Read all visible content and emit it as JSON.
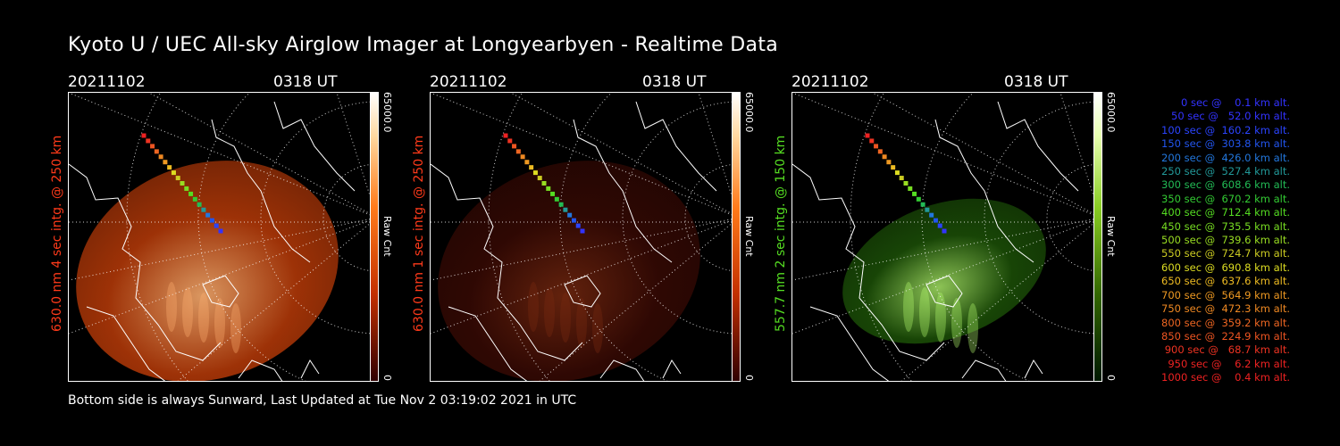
{
  "title": "Kyoto U / UEC All-sky Airglow Imager at Longyearbyen - Realtime Data",
  "footer": "Bottom side is always Sunward, Last Updated at Tue Nov  2 03:19:02 2021 in UTC",
  "panels": [
    {
      "date": "20211102",
      "time": "0318 UT",
      "ylabel": "630.0 nm  4 sec intg. @ 250 km",
      "cbar_max": "65000.0",
      "cbar_min": "0",
      "cbar_label": "Raw Cnt",
      "label_color": "#ff3a1a",
      "tint": "red"
    },
    {
      "date": "20211102",
      "time": "0318 UT",
      "ylabel": "630.0 nm  1 sec intg. @ 250 km",
      "cbar_max": "65000.0",
      "cbar_min": "0",
      "cbar_label": "Raw Cnt",
      "label_color": "#ff3a1a",
      "tint": "darkred"
    },
    {
      "date": "20211102",
      "time": "0318 UT",
      "ylabel": "557.7 nm  2 sec intg. @ 150 km",
      "cbar_max": "65000.0",
      "cbar_min": "0",
      "cbar_label": "Raw Cnt",
      "label_color": "#55dd22",
      "tint": "green"
    }
  ],
  "legend": [
    {
      "text": "0 sec @    0.1 km alt.",
      "color": "#3333ff"
    },
    {
      "text": "50 sec @   52.0 km alt.",
      "color": "#3333ff"
    },
    {
      "text": "100 sec @  160.2 km alt.",
      "color": "#2b44ff"
    },
    {
      "text": "150 sec @  303.8 km alt.",
      "color": "#2255ee"
    },
    {
      "text": "200 sec @  426.0 km alt.",
      "color": "#2277dd"
    },
    {
      "text": "250 sec @  527.4 km alt.",
      "color": "#229999"
    },
    {
      "text": "300 sec @  608.6 km alt.",
      "color": "#22bb55"
    },
    {
      "text": "350 sec @  670.2 km alt.",
      "color": "#33cc33"
    },
    {
      "text": "400 sec @  712.4 km alt.",
      "color": "#55dd22"
    },
    {
      "text": "450 sec @  735.5 km alt.",
      "color": "#77dd22"
    },
    {
      "text": "500 sec @  739.6 km alt.",
      "color": "#99dd22"
    },
    {
      "text": "550 sec @  724.7 km alt.",
      "color": "#cccc22"
    },
    {
      "text": "600 sec @  690.8 km alt.",
      "color": "#dddd22"
    },
    {
      "text": "650 sec @  637.6 km alt.",
      "color": "#eebb22"
    },
    {
      "text": "700 sec @  564.9 km alt.",
      "color": "#ee9922"
    },
    {
      "text": "750 sec @  472.3 km alt.",
      "color": "#ee8822"
    },
    {
      "text": "800 sec @  359.2 km alt.",
      "color": "#ee6622"
    },
    {
      "text": "850 sec @  224.9 km alt.",
      "color": "#ee5522"
    },
    {
      "text": "900 sec @   68.7 km alt.",
      "color": "#ee3322"
    },
    {
      "text": "950 sec @    6.2 km alt.",
      "color": "#ee2222"
    },
    {
      "text": "1000 sec @    0.4 km alt.",
      "color": "#ee2222"
    }
  ]
}
